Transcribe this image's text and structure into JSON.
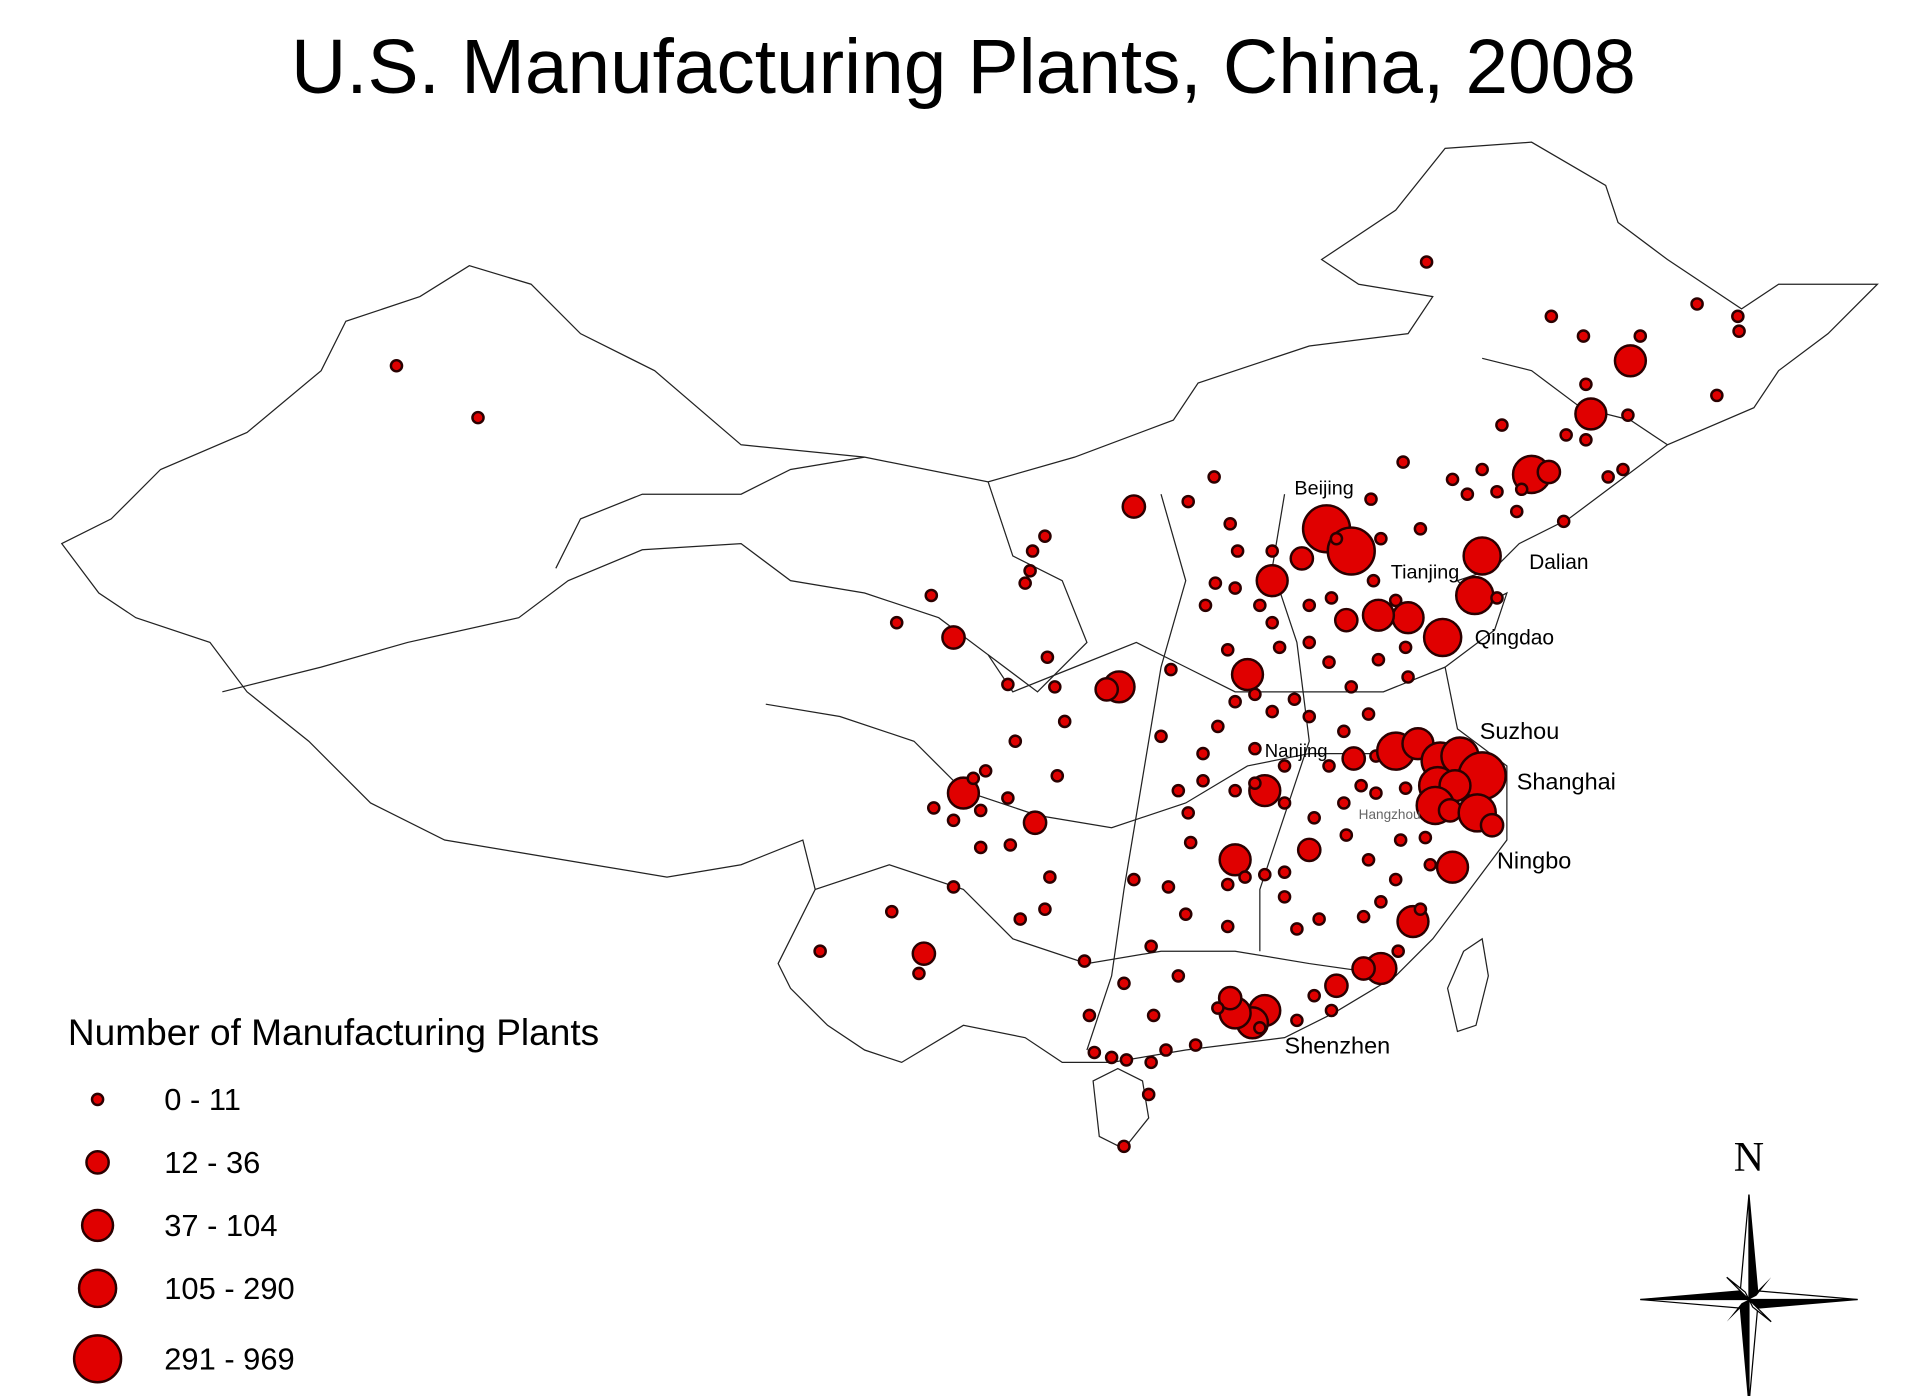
{
  "title": "U.S. Manufacturing Plants, China, 2008",
  "legend": {
    "title": "Number of Manufacturing Plants",
    "classes": [
      "0 - 11",
      "12 - 36",
      "37 - 104",
      "105 - 290",
      "291 - 969"
    ]
  },
  "cities": [
    "Beijing",
    "Tianjing",
    "Dalian",
    "Qingdao",
    "Suzhou",
    "Nanjing",
    "Shanghai",
    "Hangzhou",
    "Ningbo",
    "Shenzhen"
  ],
  "compass": "N"
}
